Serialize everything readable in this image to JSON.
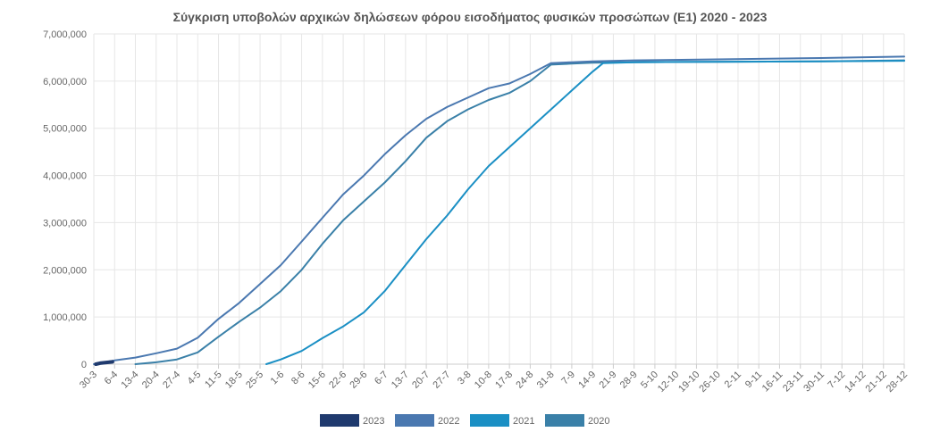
{
  "chart_data": {
    "type": "line",
    "title": "Σύγκριση υποβολών αρχικών δηλώσεων φόρου εισοδήματος φυσικών προσώπων (Ε1)  2020 - 2023",
    "xlabel": "",
    "ylabel": "",
    "ylim": [
      0,
      7000000
    ],
    "y_ticks": [
      0,
      1000000,
      2000000,
      3000000,
      4000000,
      5000000,
      6000000,
      7000000
    ],
    "y_tick_labels": [
      "0",
      "1,000,000",
      "2,000,000",
      "3,000,000",
      "4,000,000",
      "5,000,000",
      "6,000,000",
      "7,000,000"
    ],
    "x_tick_labels": [
      "30-3",
      "6-4",
      "13-4",
      "20-4",
      "27-4",
      "4-5",
      "11-5",
      "18-5",
      "25-5",
      "1-6",
      "8-6",
      "15-6",
      "22-6",
      "29-6",
      "6-7",
      "13-7",
      "20-7",
      "27-7",
      "3-8",
      "10-8",
      "17-8",
      "24-8",
      "31-8",
      "7-9",
      "14-9",
      "21-9",
      "28-9",
      "5-10",
      "12-10",
      "19-10",
      "26-10",
      "2-11",
      "9-11",
      "16-11",
      "23-11",
      "30-11",
      "7-12",
      "14-12",
      "21-12",
      "28-12"
    ],
    "x_unit": "week index from first tick (30-3); 0 = 30-3, 39 = 28-12",
    "grid": true,
    "legend_position": "bottom",
    "series": [
      {
        "name": "2023",
        "color": "#1f3a6e",
        "points": [
          [
            0.1,
            0
          ],
          [
            0.3,
            20000
          ],
          [
            0.5,
            30000
          ],
          [
            0.7,
            40000
          ],
          [
            0.9,
            50000
          ]
        ]
      },
      {
        "name": "2022",
        "color": "#4a78b0",
        "points": [
          [
            0,
            0
          ],
          [
            1,
            80000
          ],
          [
            2,
            140000
          ],
          [
            3,
            230000
          ],
          [
            4,
            330000
          ],
          [
            5,
            560000
          ],
          [
            6,
            960000
          ],
          [
            7,
            1300000
          ],
          [
            8,
            1700000
          ],
          [
            9,
            2100000
          ],
          [
            10,
            2600000
          ],
          [
            11,
            3100000
          ],
          [
            12,
            3600000
          ],
          [
            13,
            4000000
          ],
          [
            14,
            4450000
          ],
          [
            15,
            4850000
          ],
          [
            16,
            5200000
          ],
          [
            17,
            5450000
          ],
          [
            18,
            5650000
          ],
          [
            19,
            5850000
          ],
          [
            20,
            5950000
          ],
          [
            21,
            6150000
          ],
          [
            22,
            6380000
          ],
          [
            23,
            6400000
          ],
          [
            24,
            6420000
          ],
          [
            26,
            6440000
          ],
          [
            30,
            6460000
          ],
          [
            35,
            6490000
          ],
          [
            39,
            6520000
          ]
        ]
      },
      {
        "name": "2021",
        "color": "#1a8fc4",
        "points": [
          [
            8.3,
            0
          ],
          [
            9,
            100000
          ],
          [
            10,
            280000
          ],
          [
            11,
            550000
          ],
          [
            12,
            800000
          ],
          [
            13,
            1100000
          ],
          [
            14,
            1550000
          ],
          [
            15,
            2100000
          ],
          [
            16,
            2650000
          ],
          [
            17,
            3150000
          ],
          [
            18,
            3700000
          ],
          [
            19,
            4200000
          ],
          [
            20,
            4600000
          ],
          [
            21,
            5000000
          ],
          [
            22,
            5400000
          ],
          [
            23,
            5800000
          ],
          [
            24,
            6200000
          ],
          [
            24.5,
            6380000
          ],
          [
            26,
            6400000
          ],
          [
            30,
            6410000
          ],
          [
            35,
            6420000
          ],
          [
            39,
            6430000
          ]
        ]
      },
      {
        "name": "2020",
        "color": "#3a80a8",
        "points": [
          [
            2,
            0
          ],
          [
            3,
            40000
          ],
          [
            4,
            100000
          ],
          [
            5,
            250000
          ],
          [
            6,
            580000
          ],
          [
            7,
            900000
          ],
          [
            8,
            1200000
          ],
          [
            9,
            1550000
          ],
          [
            10,
            2000000
          ],
          [
            11,
            2550000
          ],
          [
            12,
            3050000
          ],
          [
            13,
            3450000
          ],
          [
            14,
            3850000
          ],
          [
            15,
            4300000
          ],
          [
            16,
            4800000
          ],
          [
            17,
            5150000
          ],
          [
            18,
            5400000
          ],
          [
            19,
            5600000
          ],
          [
            20,
            5750000
          ],
          [
            21,
            6000000
          ],
          [
            22,
            6350000
          ],
          [
            23,
            6370000
          ],
          [
            24,
            6390000
          ],
          [
            26,
            6400000
          ],
          [
            30,
            6410000
          ],
          [
            35,
            6420000
          ],
          [
            39,
            6440000
          ]
        ]
      }
    ]
  }
}
